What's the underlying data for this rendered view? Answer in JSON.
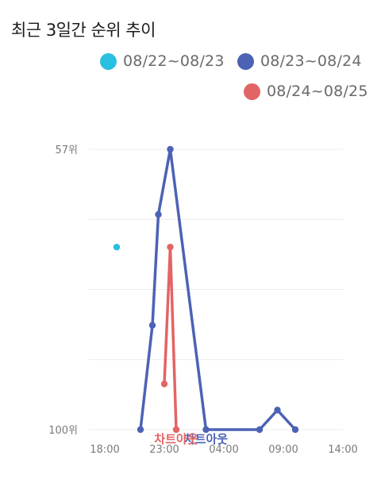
{
  "header": {
    "title": "최근 3일간 순위 추이"
  },
  "chart_data": {
    "type": "line",
    "title": "최근 3일간 순위 추이",
    "x_ticks": [
      "18:00",
      "23:00",
      "04:00",
      "09:00",
      "14:00"
    ],
    "y_ticks": [
      "57위",
      "100위"
    ],
    "ylim": [
      57,
      100
    ],
    "y_inverted": true,
    "grid": true,
    "legend_position": "top",
    "chart_out_label": "차트아웃",
    "series": [
      {
        "name": "08/22~08/23",
        "color": "#29bfe0",
        "points": [
          {
            "x": 19,
            "y": 72
          }
        ]
      },
      {
        "name": "08/23~08/24",
        "color": "#4c62b5",
        "points": [
          {
            "x": 21,
            "y": 100
          },
          {
            "x": 22,
            "y": 84
          },
          {
            "x": 22.5,
            "y": 67
          },
          {
            "x": 23.5,
            "y": 57
          },
          {
            "x": 26.5,
            "y": 100,
            "label": "차트아웃"
          },
          {
            "x": 31,
            "y": 100
          },
          {
            "x": 32.5,
            "y": 97
          },
          {
            "x": 34,
            "y": 100
          }
        ]
      },
      {
        "name": "08/24~08/25",
        "color": "#e36464",
        "points": [
          {
            "x": 23,
            "y": 93
          },
          {
            "x": 23.5,
            "y": 72
          },
          {
            "x": 24,
            "y": 100,
            "label": "차트아웃"
          }
        ]
      }
    ]
  }
}
